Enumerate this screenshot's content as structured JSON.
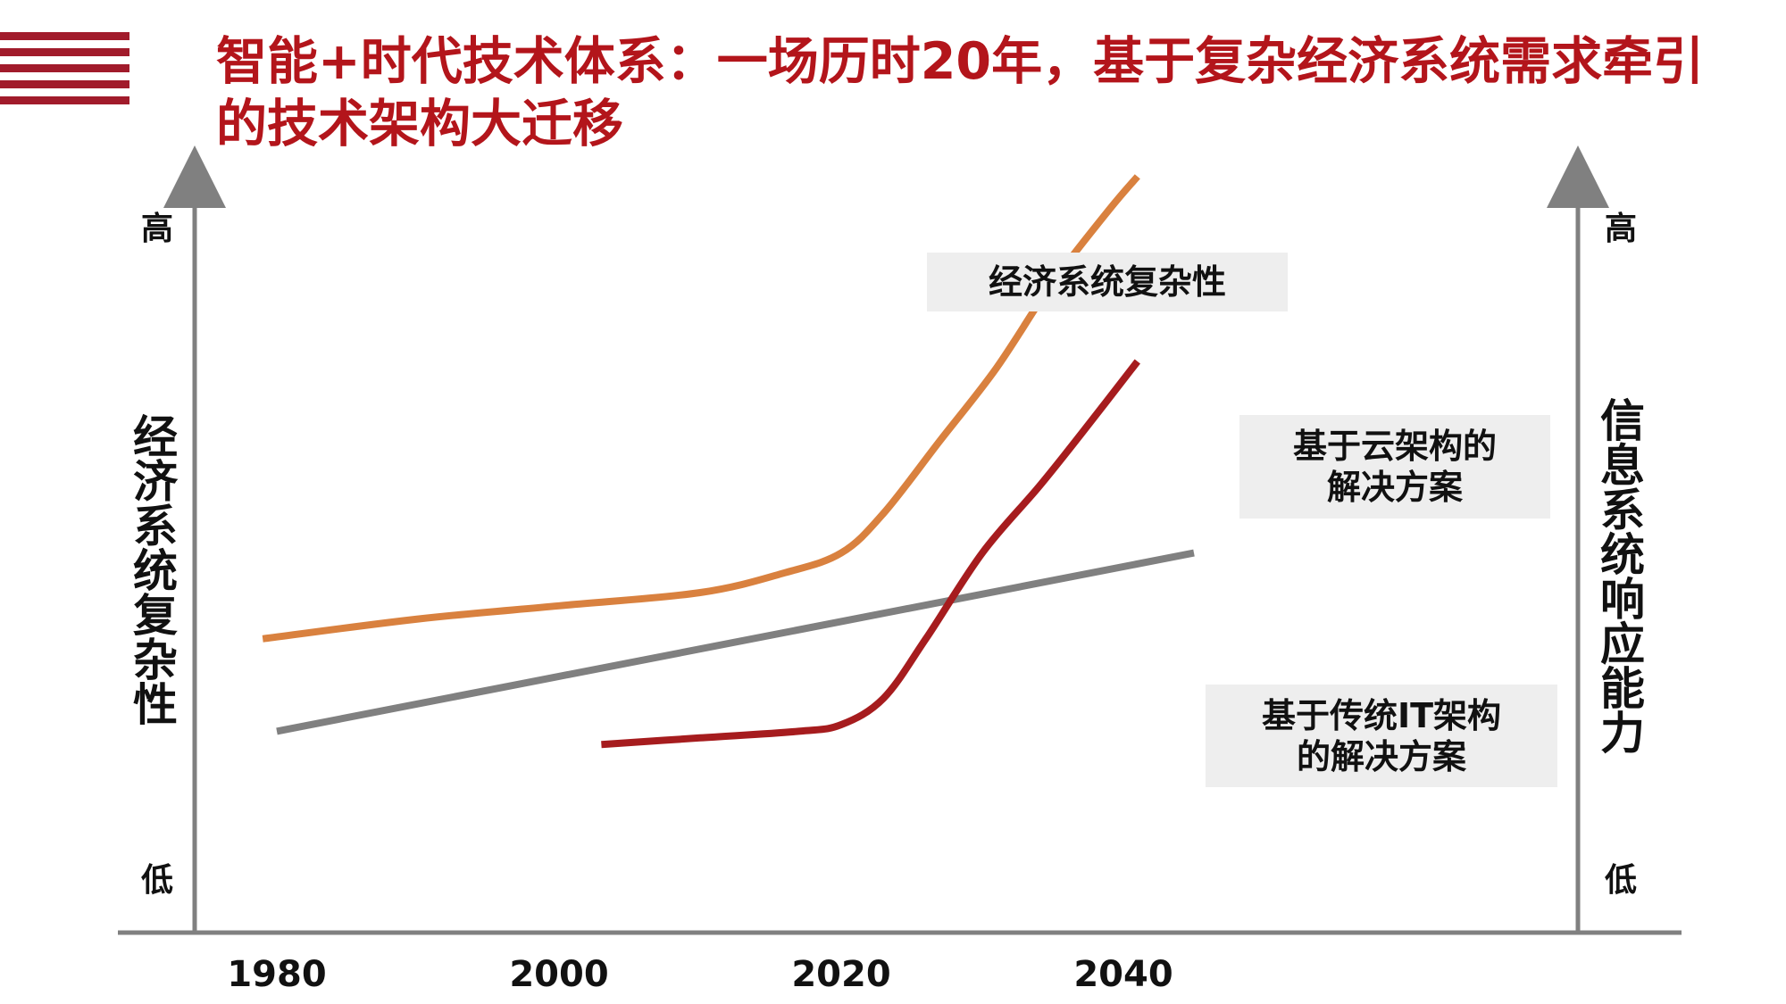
{
  "title": "智能+时代技术体系：一场历时20年，基于复杂经济系统需求牵引的技术架构大迁移",
  "colors": {
    "title": "#b3151b",
    "menu_icon": "#a11b2b",
    "axis": "#808080",
    "label_box": "#eeeeee"
  },
  "chart_data": {
    "type": "line",
    "xlabel": "",
    "x_ticks": [
      "1980",
      "2000",
      "2020",
      "2040"
    ],
    "xlim": [
      1975,
      2048
    ],
    "left_axis": {
      "label": "经济系统复杂性",
      "high": "高",
      "low": "低"
    },
    "right_axis": {
      "label": "信息系统响应能力",
      "high": "高",
      "low": "低"
    },
    "ylim": [
      0,
      100
    ],
    "grid": false,
    "series": [
      {
        "name": "经济系统复杂性",
        "color": "#d9813f",
        "x": [
          1979,
          1990,
          2000,
          2010,
          2016,
          2020,
          2023,
          2027,
          2031,
          2035,
          2039,
          2041
        ],
        "y": [
          33,
          36,
          38,
          40,
          43,
          46,
          52,
          63,
          74,
          87,
          98,
          103
        ]
      },
      {
        "name": "基于传统IT架构的解决方案",
        "color": "#808080",
        "x": [
          1980,
          2045
        ],
        "y": [
          19,
          46
        ]
      },
      {
        "name": "基于云架构的解决方案",
        "color": "#a61c1e",
        "x": [
          2003,
          2010,
          2017,
          2020,
          2023,
          2026,
          2030,
          2034,
          2037,
          2041
        ],
        "y": [
          17,
          18,
          19,
          20,
          24,
          33,
          46,
          56,
          64,
          75
        ]
      }
    ]
  }
}
